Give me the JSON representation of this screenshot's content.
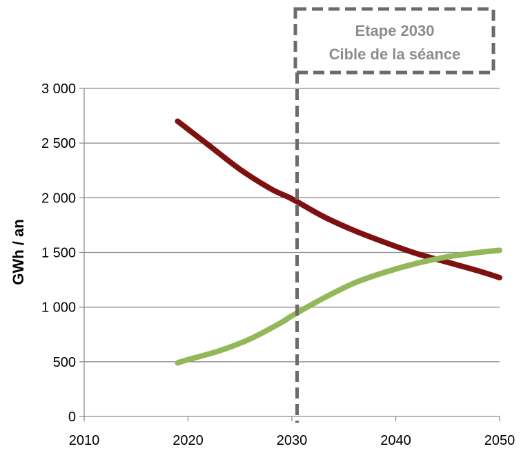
{
  "chart_data": {
    "type": "line",
    "ylabel": "GWh / an",
    "x_ticks": [
      2010,
      2020,
      2030,
      2040,
      2050
    ],
    "y_ticks": [
      {
        "value": 0,
        "label": "0"
      },
      {
        "value": 500,
        "label": "500"
      },
      {
        "value": 1000,
        "label": "1 000"
      },
      {
        "value": 1500,
        "label": "1 500"
      },
      {
        "value": 2000,
        "label": "2 000"
      },
      {
        "value": 2500,
        "label": "2 500"
      },
      {
        "value": 3000,
        "label": "3 000"
      }
    ],
    "xlim": [
      2010,
      2050
    ],
    "ylim": [
      0,
      3000
    ],
    "grid": "horizontal",
    "series": [
      {
        "color": "#7f1010",
        "x": [
          2019,
          2022,
          2025,
          2028,
          2030,
          2033,
          2036,
          2039,
          2042,
          2045,
          2048,
          2050
        ],
        "values": [
          2700,
          2480,
          2260,
          2080,
          1990,
          1830,
          1700,
          1590,
          1490,
          1410,
          1330,
          1270
        ]
      },
      {
        "color": "#92b85a",
        "x": [
          2019,
          2020,
          2023,
          2026,
          2029,
          2030,
          2033,
          2036,
          2039,
          2042,
          2045,
          2048,
          2050
        ],
        "values": [
          490,
          520,
          600,
          710,
          860,
          920,
          1080,
          1220,
          1320,
          1400,
          1460,
          1500,
          1520
        ]
      }
    ],
    "annotations": {
      "marker_x": 2030.5,
      "box_lines": [
        "Etape 2030",
        "Cible de la séance"
      ]
    }
  },
  "colors": {
    "axis": "#8c8c8c",
    "grid": "#8c8c8c",
    "dashed_marker": "#6f6a6a",
    "annotation_text": "#8c8c8c"
  }
}
